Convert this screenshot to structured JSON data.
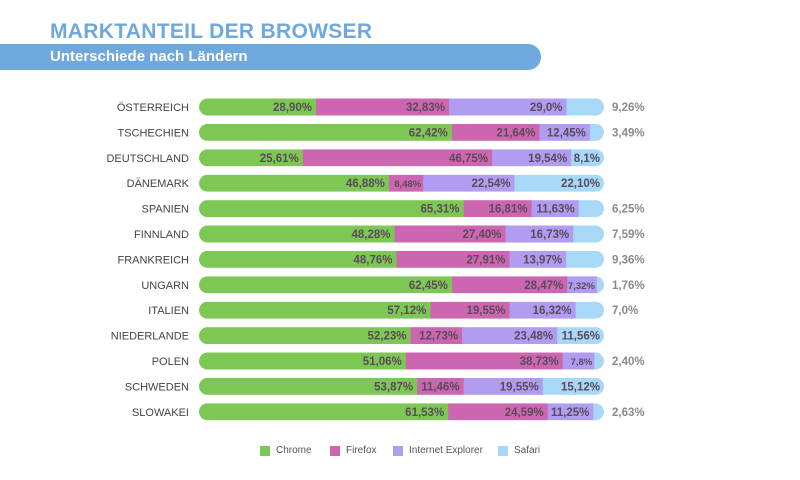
{
  "header": {
    "title": "MARKTANTEIL DER BROWSER",
    "subtitle": "Unterschiede nach Ländern"
  },
  "colors": {
    "title": "#6fa8dc",
    "banner": "#6fa8dc",
    "chrome": "#7dc855",
    "firefox": "#cc66b0",
    "ie": "#b09cf0",
    "safari": "#a8d8f8"
  },
  "chart_data": {
    "type": "bar",
    "orientation": "horizontal",
    "stacked": true,
    "categories": [
      "ÖSTERREICH",
      "TSCHECHIEN",
      "DEUTSCHLAND",
      "DÄNEMARK",
      "SPANIEN",
      "FINNLAND",
      "FRANKREICH",
      "UNGARN",
      "ITALIEN",
      "NIEDERLANDE",
      "POLEN",
      "SCHWEDEN",
      "SLOWAKEI"
    ],
    "series": [
      {
        "name": "Chrome",
        "color": "#7dc855",
        "values": [
          28.9,
          62.42,
          25.61,
          46.88,
          65.31,
          48.28,
          48.76,
          62.45,
          57.12,
          52.23,
          51.06,
          53.87,
          61.53
        ],
        "labels": [
          "28,90%",
          "62,42%",
          "25,61%",
          "46,88%",
          "65,31%",
          "48,28%",
          "48,76%",
          "62,45%",
          "57,12%",
          "52,23%",
          "51,06%",
          "53,87%",
          "61,53%"
        ]
      },
      {
        "name": "Firefox",
        "color": "#cc66b0",
        "values": [
          32.83,
          21.64,
          46.75,
          8.48,
          16.81,
          27.4,
          27.91,
          28.47,
          19.55,
          12.73,
          38.73,
          11.46,
          24.59
        ],
        "labels": [
          "32,83%",
          "21,64%",
          "46,75%",
          "8,48%",
          "16,81%",
          "27,40%",
          "27,91%",
          "28,47%",
          "19,55%",
          "12,73%",
          "38,73%",
          "11,46%",
          "24,59%"
        ]
      },
      {
        "name": "Internet Explorer",
        "color": "#b09cf0",
        "values": [
          29.0,
          12.45,
          19.54,
          22.54,
          11.63,
          16.73,
          13.97,
          7.32,
          16.32,
          23.48,
          7.8,
          19.55,
          11.25
        ],
        "labels": [
          "29,0%",
          "12,45%",
          "19,54%",
          "22,54%",
          "11,63%",
          "16,73%",
          "13,97%",
          "7,32%",
          "16,32%",
          "23,48%",
          "7,8%",
          "19,55%",
          "11,25%"
        ]
      },
      {
        "name": "Safari",
        "color": "#a8d8f8",
        "values": [
          9.26,
          3.49,
          8.1,
          22.1,
          6.25,
          7.59,
          9.36,
          1.76,
          7.0,
          11.56,
          2.4,
          15.12,
          2.63
        ],
        "labels": [
          "9,26%",
          "3,49%",
          "8,1%",
          "22,10%",
          "6,25%",
          "7,59%",
          "9,36%",
          "1,76%",
          "7,0%",
          "11,56%",
          "2,40%",
          "15,12%",
          "2,63%"
        ]
      }
    ],
    "legend": [
      "Chrome",
      "Firefox",
      "Internet Explorer",
      "Safari"
    ],
    "legend_position": "bottom",
    "grid": false
  }
}
